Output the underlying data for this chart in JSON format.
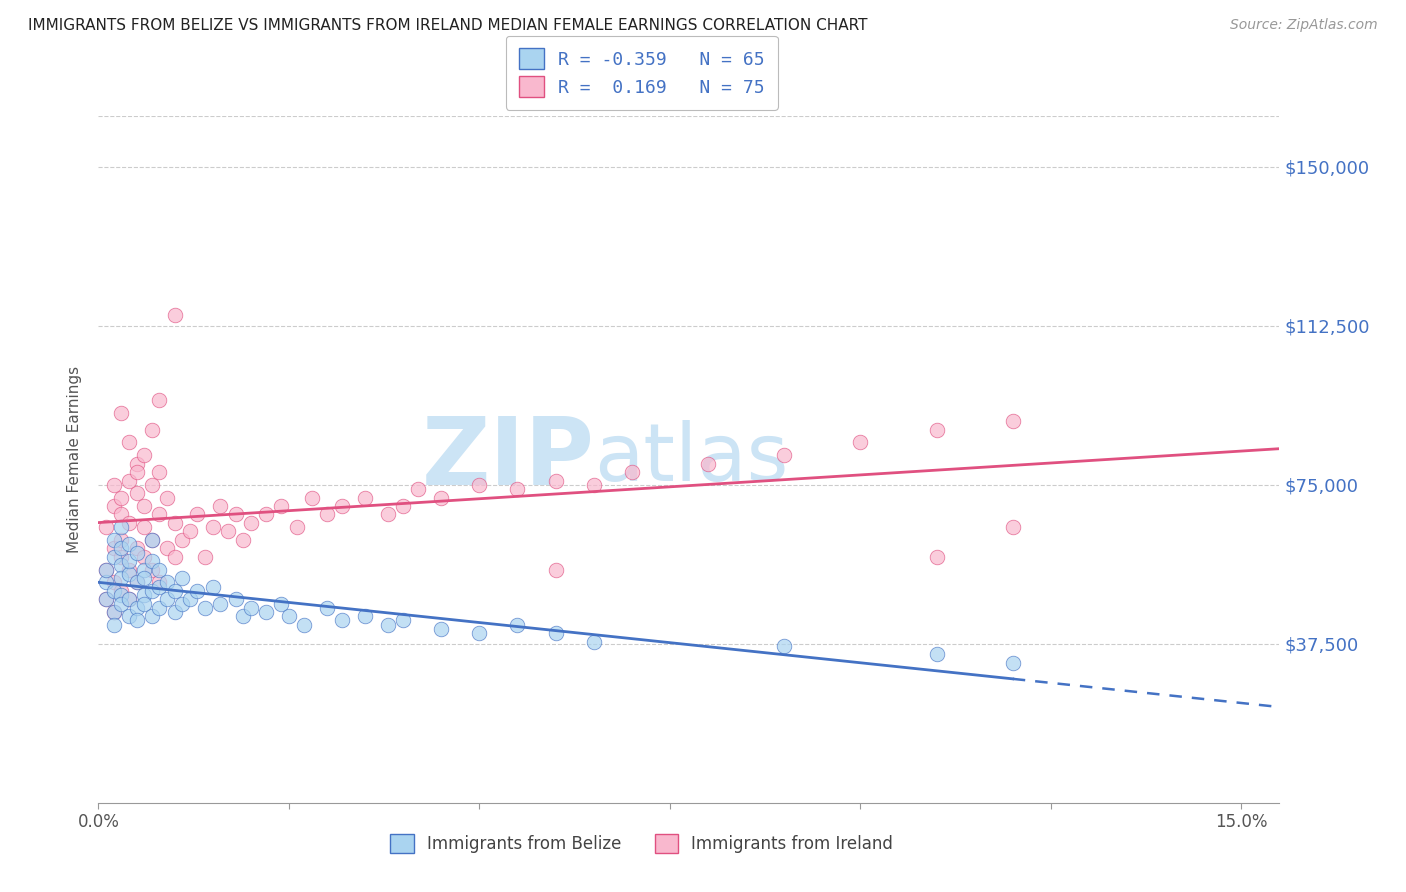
{
  "title": "IMMIGRANTS FROM BELIZE VS IMMIGRANTS FROM IRELAND MEDIAN FEMALE EARNINGS CORRELATION CHART",
  "source": "Source: ZipAtlas.com",
  "ylabel": "Median Female Earnings",
  "ytick_labels": [
    "$37,500",
    "$75,000",
    "$112,500",
    "$150,000"
  ],
  "ytick_values": [
    37500,
    75000,
    112500,
    150000
  ],
  "ylim": [
    0,
    162000
  ],
  "xlim": [
    0.0,
    0.155
  ],
  "legend_belize": "R = -0.359   N = 65",
  "legend_ireland": "R =  0.169   N = 75",
  "belize_color": "#aad4f0",
  "ireland_color": "#f9b8ce",
  "belize_line_color": "#4472c4",
  "ireland_line_color": "#e05080",
  "watermark_zip": "ZIP",
  "watermark_atlas": "atlas",
  "watermark_color": "#cce4f5",
  "legend_label_belize": "Immigrants from Belize",
  "legend_label_ireland": "Immigrants from Ireland",
  "belize_R": -0.359,
  "belize_N": 65,
  "ireland_R": 0.169,
  "ireland_N": 75,
  "belize_scatter_x": [
    0.001,
    0.001,
    0.001,
    0.002,
    0.002,
    0.002,
    0.002,
    0.002,
    0.003,
    0.003,
    0.003,
    0.003,
    0.003,
    0.003,
    0.004,
    0.004,
    0.004,
    0.004,
    0.004,
    0.005,
    0.005,
    0.005,
    0.005,
    0.006,
    0.006,
    0.006,
    0.006,
    0.007,
    0.007,
    0.007,
    0.007,
    0.008,
    0.008,
    0.008,
    0.009,
    0.009,
    0.01,
    0.01,
    0.011,
    0.011,
    0.012,
    0.013,
    0.014,
    0.015,
    0.016,
    0.018,
    0.019,
    0.02,
    0.022,
    0.024,
    0.025,
    0.027,
    0.03,
    0.032,
    0.035,
    0.038,
    0.04,
    0.045,
    0.05,
    0.055,
    0.06,
    0.065,
    0.09,
    0.11,
    0.12
  ],
  "belize_scatter_y": [
    52000,
    48000,
    55000,
    50000,
    58000,
    45000,
    62000,
    42000,
    56000,
    49000,
    60000,
    53000,
    47000,
    65000,
    54000,
    48000,
    57000,
    44000,
    61000,
    52000,
    46000,
    59000,
    43000,
    55000,
    49000,
    53000,
    47000,
    57000,
    50000,
    44000,
    62000,
    51000,
    46000,
    55000,
    48000,
    52000,
    50000,
    45000,
    53000,
    47000,
    48000,
    50000,
    46000,
    51000,
    47000,
    48000,
    44000,
    46000,
    45000,
    47000,
    44000,
    42000,
    46000,
    43000,
    44000,
    42000,
    43000,
    41000,
    40000,
    42000,
    40000,
    38000,
    37000,
    35000,
    33000
  ],
  "ireland_scatter_x": [
    0.001,
    0.001,
    0.001,
    0.002,
    0.002,
    0.002,
    0.002,
    0.002,
    0.003,
    0.003,
    0.003,
    0.003,
    0.003,
    0.004,
    0.004,
    0.004,
    0.004,
    0.005,
    0.005,
    0.005,
    0.005,
    0.006,
    0.006,
    0.006,
    0.007,
    0.007,
    0.007,
    0.008,
    0.008,
    0.008,
    0.009,
    0.009,
    0.01,
    0.01,
    0.011,
    0.012,
    0.013,
    0.014,
    0.015,
    0.016,
    0.017,
    0.018,
    0.019,
    0.02,
    0.022,
    0.024,
    0.026,
    0.028,
    0.03,
    0.032,
    0.035,
    0.038,
    0.04,
    0.042,
    0.045,
    0.05,
    0.055,
    0.06,
    0.065,
    0.07,
    0.08,
    0.09,
    0.1,
    0.11,
    0.12,
    0.003,
    0.004,
    0.005,
    0.006,
    0.007,
    0.008,
    0.01,
    0.06,
    0.11,
    0.12
  ],
  "ireland_scatter_y": [
    55000,
    48000,
    65000,
    60000,
    52000,
    70000,
    45000,
    75000,
    58000,
    68000,
    50000,
    72000,
    62000,
    55000,
    76000,
    48000,
    66000,
    60000,
    73000,
    52000,
    80000,
    58000,
    65000,
    70000,
    55000,
    75000,
    62000,
    52000,
    68000,
    78000,
    60000,
    72000,
    58000,
    66000,
    62000,
    64000,
    68000,
    58000,
    65000,
    70000,
    64000,
    68000,
    62000,
    66000,
    68000,
    70000,
    65000,
    72000,
    68000,
    70000,
    72000,
    68000,
    70000,
    74000,
    72000,
    75000,
    74000,
    76000,
    75000,
    78000,
    80000,
    82000,
    85000,
    88000,
    90000,
    92000,
    85000,
    78000,
    82000,
    88000,
    95000,
    115000,
    55000,
    58000,
    65000
  ]
}
